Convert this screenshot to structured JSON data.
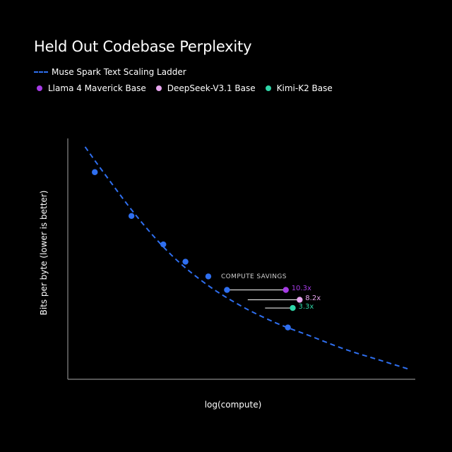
{
  "chart_data": {
    "type": "scatter",
    "title": "Held Out Codebase Perplexity",
    "xlabel": "log(compute)",
    "ylabel": "Bits per byte (lower is better)",
    "xlim": [
      0,
      10
    ],
    "ylim": [
      0,
      10
    ],
    "ticks_shown": false,
    "grid": false,
    "legend_position": "top-left",
    "scaling_ladder": {
      "name": "Muse Spark Text Scaling Ladder",
      "color": "#2f6ff0",
      "line_style": "dashed",
      "curve": {
        "x": [
          0.5,
          1.0,
          2.0,
          3.0,
          4.0,
          5.0,
          6.0,
          7.0,
          8.0,
          9.0,
          9.9
        ],
        "y": [
          9.65,
          8.65,
          6.75,
          5.15,
          3.95,
          3.05,
          2.35,
          1.8,
          1.25,
          0.8,
          0.4
        ]
      },
      "points": {
        "x": [
          0.78,
          1.84,
          2.76,
          3.4,
          4.06,
          4.6,
          6.36
        ],
        "y": [
          8.6,
          6.78,
          5.6,
          4.88,
          4.27,
          3.71,
          2.15
        ]
      }
    },
    "models": [
      {
        "name": "Llama 4 Maverick Base",
        "color": "#a63be6",
        "x": 6.3,
        "y": 3.71,
        "savings_label": "10.3x",
        "match_x": 4.6
      },
      {
        "name": "DeepSeek-V3.1 Base",
        "color": "#e7a6ee",
        "x": 6.7,
        "y": 3.3,
        "savings_label": "8.2x",
        "match_x": 5.2
      },
      {
        "name": "Kimi-K2 Base",
        "color": "#2fd6a8",
        "x": 6.5,
        "y": 2.96,
        "savings_label": "3.3x",
        "match_x": 5.7
      }
    ],
    "annotation": "COMPUTE SAVINGS"
  }
}
